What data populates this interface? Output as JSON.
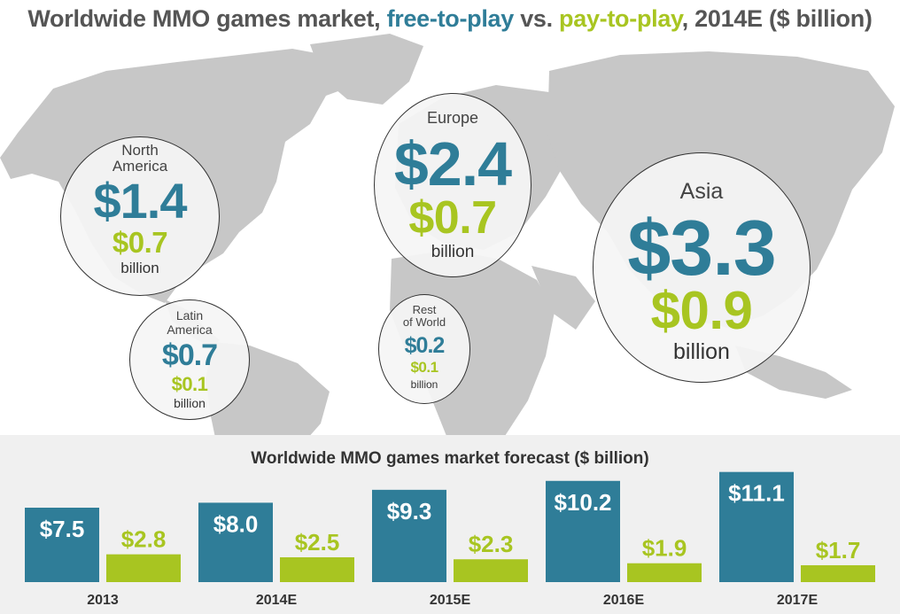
{
  "title": {
    "part1": "Worldwide MMO games market, ",
    "free": "free-to-play",
    "mid": " vs. ",
    "pay": "pay-to-play",
    "part2": ", 2014E ($ billion)"
  },
  "colors": {
    "free_to_play": "#2f7d98",
    "pay_to_play": "#a8c521",
    "map": "#c7c7c7",
    "panel": "#f0f0f0",
    "title_text": "#555555"
  },
  "regions": [
    {
      "name_line1": "North",
      "name_line2": "America",
      "free_label": "$1.4",
      "pay_label": "$0.7",
      "unit": "billion",
      "free_value": 1.4,
      "pay_value": 0.7
    },
    {
      "name_line1": "Europe",
      "name_line2": "",
      "free_label": "$2.4",
      "pay_label": "$0.7",
      "unit": "billion",
      "free_value": 2.4,
      "pay_value": 0.7
    },
    {
      "name_line1": "Asia",
      "name_line2": "",
      "free_label": "$3.3",
      "pay_label": "$0.9",
      "unit": "billion",
      "free_value": 3.3,
      "pay_value": 0.9
    },
    {
      "name_line1": "Latin",
      "name_line2": "America",
      "free_label": "$0.7",
      "pay_label": "$0.1",
      "unit": "billion",
      "free_value": 0.7,
      "pay_value": 0.1
    },
    {
      "name_line1": "Rest",
      "name_line2": "of World",
      "free_label": "$0.2",
      "pay_label": "$0.1",
      "unit": "billion",
      "free_value": 0.2,
      "pay_value": 0.1
    }
  ],
  "chart_data": {
    "type": "bar",
    "title": "Worldwide MMO games market forecast ($ billion)",
    "categories": [
      "2013",
      "2014E",
      "2015E",
      "2016E",
      "2017E"
    ],
    "series": [
      {
        "name": "free-to-play",
        "values": [
          7.5,
          8.0,
          9.3,
          10.2,
          11.1
        ],
        "labels": [
          "$7.5",
          "$8.0",
          "$9.3",
          "$10.2",
          "$11.1"
        ],
        "color": "#2f7d98"
      },
      {
        "name": "pay-to-play",
        "values": [
          2.8,
          2.5,
          2.3,
          1.9,
          1.7
        ],
        "labels": [
          "$2.8",
          "$2.5",
          "$2.3",
          "$1.9",
          "$1.7"
        ],
        "color": "#a8c521"
      }
    ],
    "ylim": [
      0,
      12
    ],
    "grid": false,
    "legend": "none"
  }
}
